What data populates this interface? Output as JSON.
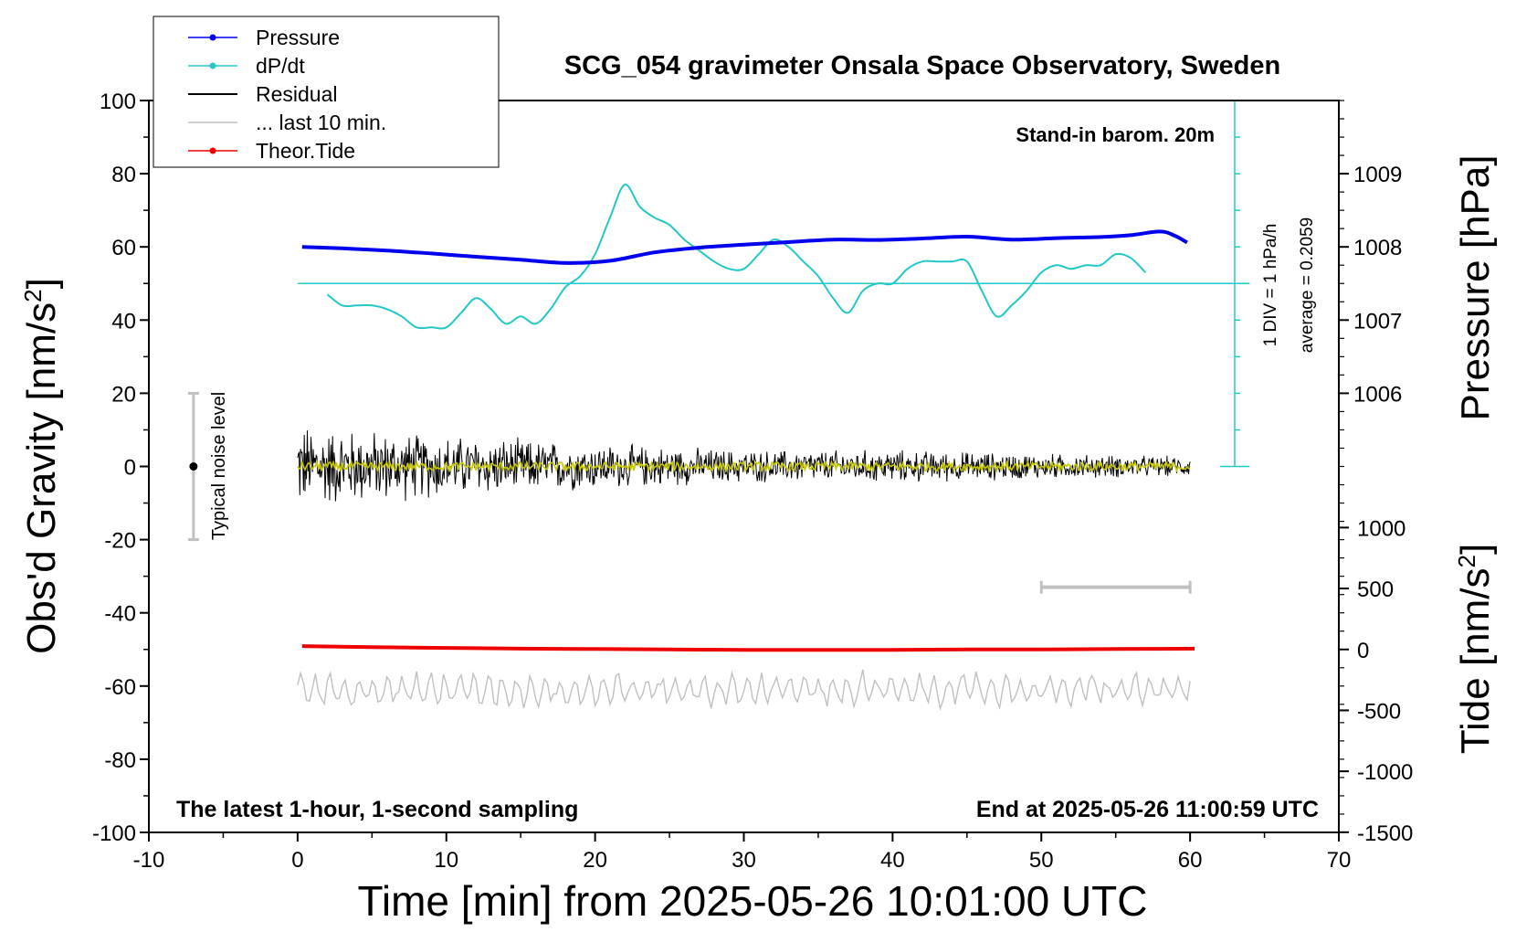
{
  "chart_data": {
    "type": "line",
    "title": "SCG_054 gravimeter Onsala Space Observatory, Sweden",
    "xlabel": "Time [min] from 2025-05-26 10:01:00 UTC",
    "ylabel": "Obs'd Gravity [nm/s",
    "ylabel_sup": "2",
    "ylabel_end": "]",
    "pressure_axis_label": "Pressure [hPa]",
    "tide_axis_label": "Tide [nm/s",
    "tide_axis_sup": "2",
    "tide_axis_end": "]",
    "xlim": [
      -10,
      70
    ],
    "ylim": [
      -100,
      100
    ],
    "x_ticks": [
      "-10",
      "0",
      "10",
      "20",
      "30",
      "40",
      "50",
      "60",
      "70"
    ],
    "y_ticks": [
      "-100",
      "-80",
      "-60",
      "-40",
      "-20",
      "0",
      "20",
      "40",
      "60",
      "80",
      "100"
    ],
    "pressure_ticks": [
      "1006",
      "1007",
      "1008",
      "1009"
    ],
    "pressure_tick_values": [
      1006,
      1007,
      1008,
      1009
    ],
    "pressure_ref": {
      "value": 1008,
      "gravity": 60
    },
    "pressure_scale_gravity_per_hpa": 20,
    "tide_ticks": [
      "1000",
      "500",
      "0",
      "-500",
      "-1000",
      "-1500"
    ],
    "tide_tick_values": [
      1000,
      500,
      0,
      -500,
      -1000,
      -1500
    ],
    "tide_ref": {
      "value": 0,
      "gravity": -50
    },
    "tide_scale_gravity_per_unit": 0.0333,
    "annotations": {
      "barometer": "Stand-in barom. 20m",
      "bottom_left": "The latest 1-hour, 1-second sampling",
      "bottom_right": "End at 2025-05-26 11:00:59 UTC",
      "dpdt_scale": "1 DIV = 1 hPa/h",
      "dpdt_average": "average = 0.2059",
      "noise": "Typical noise level"
    },
    "legend": {
      "position": "top-left",
      "entries": [
        {
          "name": "Pressure",
          "color": "#0000ee",
          "marker": true
        },
        {
          "name": "dP/dt",
          "color": "#20c8c8",
          "marker": true
        },
        {
          "name": "Residual",
          "color": "#000000",
          "marker": false
        },
        {
          "name": "... last 10 min.",
          "color": "#c0c0c0",
          "marker": false
        },
        {
          "name": "Theor.Tide",
          "color": "#ee0000",
          "marker": true
        }
      ]
    },
    "noise_bar": {
      "x": -7,
      "low": -20,
      "high": 20,
      "center": 0
    },
    "last10_bar": {
      "x_start": 50,
      "x_end": 60,
      "y": -33
    },
    "dpdt_baseline_y": 50,
    "dpdt_scale_bar": {
      "x": 63,
      "y_low": 0,
      "y_high": 100
    },
    "series": [
      {
        "name": "Pressure",
        "color": "#0000ee",
        "x": [
          0.3,
          3,
          6,
          9,
          12,
          15,
          18,
          21,
          24,
          27,
          30,
          33,
          36,
          39,
          42,
          45,
          48,
          51,
          54,
          56,
          58,
          59,
          59.8
        ],
        "y": [
          60,
          59.6,
          59.0,
          58.2,
          57.3,
          56.5,
          55.6,
          56.2,
          58.5,
          59.8,
          60.6,
          61.3,
          62.0,
          61.9,
          62.3,
          62.8,
          62.0,
          62.4,
          62.7,
          63.2,
          64.2,
          63.0,
          61.2
        ]
      },
      {
        "name": "dP/dt",
        "color": "#20c8c8",
        "x": [
          2,
          3,
          4,
          5,
          6,
          7,
          8,
          9,
          10,
          11,
          12,
          13,
          14,
          15,
          16,
          17,
          18,
          19,
          20,
          21,
          22,
          23,
          24,
          25,
          26,
          27,
          28,
          29,
          30,
          31,
          32,
          33,
          34,
          35,
          36,
          37,
          38,
          39,
          40,
          41,
          42,
          43,
          44,
          45,
          46,
          47,
          48,
          49,
          50,
          51,
          52,
          53,
          54,
          55,
          56,
          57
        ],
        "y": [
          47,
          44,
          44,
          44,
          43,
          41,
          38,
          38,
          38,
          42,
          46,
          43,
          39,
          41,
          39,
          43,
          49,
          52,
          58,
          68,
          77,
          71,
          68,
          66,
          62,
          59,
          56,
          54,
          54,
          58,
          62,
          60,
          56,
          52,
          46,
          42,
          48,
          50,
          50,
          54,
          56,
          56,
          56,
          56,
          48,
          41,
          44,
          48,
          53,
          55,
          54,
          55,
          55,
          58,
          57,
          53
        ]
      },
      {
        "name": "Residual",
        "color": "#000000",
        "x_start": 0,
        "x_end": 60,
        "envelope": [
          {
            "x": 0,
            "amp": 13
          },
          {
            "x": 5,
            "amp": 11
          },
          {
            "x": 12,
            "amp": 9
          },
          {
            "x": 20,
            "amp": 7
          },
          {
            "x": 30,
            "amp": 5
          },
          {
            "x": 40,
            "amp": 5
          },
          {
            "x": 50,
            "amp": 4
          },
          {
            "x": 60,
            "amp": 3
          }
        ],
        "center": 0
      },
      {
        "name": "Residual (smoothed)",
        "color": "#c8c800",
        "x_start": 0,
        "x_end": 60,
        "center": 0,
        "amp": 1.2
      },
      {
        "name": "... last 10 min.",
        "color": "#c0c0c0",
        "x_start": 0,
        "x_end": 60,
        "center": -61,
        "amp": 4.5
      },
      {
        "name": "Theor.Tide",
        "color": "#ee0000",
        "x": [
          0.3,
          5,
          10,
          15,
          20,
          25,
          30,
          35,
          40,
          45,
          50,
          55,
          60.3
        ],
        "y": [
          -49.1,
          -49.4,
          -49.6,
          -49.8,
          -49.9,
          -50.0,
          -50.1,
          -50.1,
          -50.1,
          -50.0,
          -50.0,
          -49.9,
          -49.8
        ]
      }
    ]
  }
}
